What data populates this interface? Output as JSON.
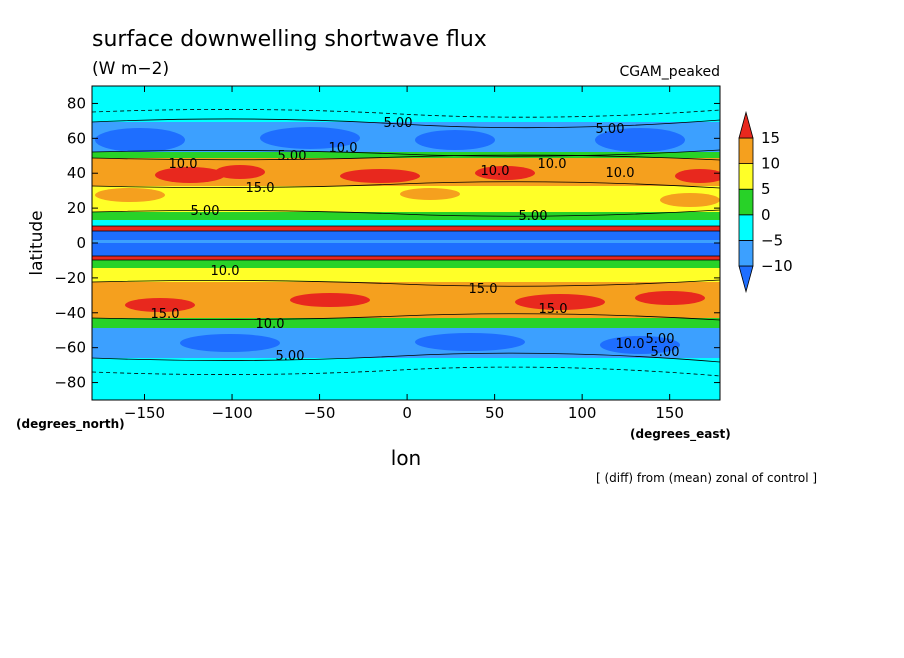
{
  "chart_data": {
    "type": "contour",
    "title": "surface downwelling shortwave flux",
    "subtitle": "(W m−2)",
    "case_label": "CGAM_peaked",
    "xlabel": "lon",
    "ylabel": "latitude",
    "x_units": "(degrees_east)",
    "y_units": "(degrees_north)",
    "footnote": "[ (diff) from (mean) zonal of control ]",
    "xlim": [
      -180,
      178.75
    ],
    "ylim": [
      -90,
      90
    ],
    "xticks": [
      {
        "value": -150,
        "label": "−150"
      },
      {
        "value": -100,
        "label": "−100"
      },
      {
        "value": -50,
        "label": "−50"
      },
      0,
      50,
      100,
      150
    ],
    "yticks": [
      {
        "value": -80,
        "label": "−80"
      },
      {
        "value": -60,
        "label": "−60"
      },
      {
        "value": -40,
        "label": "−40"
      },
      {
        "value": -20,
        "label": "−20"
      },
      0,
      20,
      40,
      60,
      80
    ],
    "colorbar": {
      "levels": [
        {
          "value": -10,
          "label": "−10"
        },
        {
          "value": -5,
          "label": "−5"
        },
        0,
        5,
        10,
        15
      ],
      "colors": [
        "#1e6eff",
        "#3ca0ff",
        "#00ffff",
        "#28d228",
        "#ffff28",
        "#f5a01e",
        "#e8281e"
      ]
    },
    "contour_labels": [
      "5.00",
      "5.00",
      "10.0",
      "10.0",
      "5.00",
      "10.0",
      "15.0",
      "10.0",
      "10.0",
      "5.00",
      "5.00",
      "10.0",
      "15.0",
      "15.0",
      "15.0",
      "10.0",
      "5.00",
      "5.00",
      "10.0",
      "5.00"
    ]
  }
}
